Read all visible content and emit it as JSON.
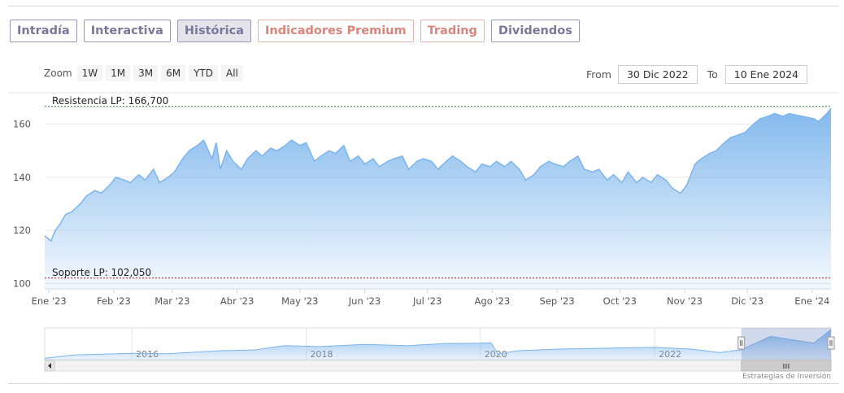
{
  "tabs": [
    {
      "label": "Intradía",
      "active": false,
      "premium": false
    },
    {
      "label": "Interactiva",
      "active": false,
      "premium": false
    },
    {
      "label": "Histórica",
      "active": true,
      "premium": false
    },
    {
      "label": "Indicadores Premium",
      "active": false,
      "premium": true
    },
    {
      "label": "Trading",
      "active": false,
      "premium": true
    },
    {
      "label": "Dividendos",
      "active": false,
      "premium": false
    }
  ],
  "zoom": {
    "label": "Zoom",
    "buttons": [
      "1W",
      "1M",
      "3M",
      "6M",
      "YTD",
      "All"
    ]
  },
  "range": {
    "from_label": "From",
    "from_value": "30 Dic 2022",
    "to_label": "To",
    "to_value": "10 Ene 2024"
  },
  "credit": "Estrategias de Inversión",
  "colors": {
    "line": "#7cb5ec",
    "resistance": "#2e7d32",
    "support": "#b71c1c",
    "tab_border": "#9a97b5",
    "premium": "#d9847c"
  },
  "chart_data": {
    "type": "area",
    "ylim": [
      98,
      170
    ],
    "xlim": [
      "2022-12-30",
      "2024-01-10"
    ],
    "y_ticks": [
      100,
      120,
      140,
      160
    ],
    "x_ticks": [
      {
        "date": "2023-01-01",
        "label": "Ene '23"
      },
      {
        "date": "2023-02-01",
        "label": "Feb '23"
      },
      {
        "date": "2023-03-01",
        "label": "Mar '23"
      },
      {
        "date": "2023-04-01",
        "label": "Abr '23"
      },
      {
        "date": "2023-05-01",
        "label": "May '23"
      },
      {
        "date": "2023-06-01",
        "label": "Jun '23"
      },
      {
        "date": "2023-07-01",
        "label": "Jul '23"
      },
      {
        "date": "2023-08-01",
        "label": "Ago '23"
      },
      {
        "date": "2023-09-01",
        "label": "Sep '23"
      },
      {
        "date": "2023-10-01",
        "label": "Oct '23"
      },
      {
        "date": "2023-11-01",
        "label": "Nov '23"
      },
      {
        "date": "2023-12-01",
        "label": "Dic '23"
      },
      {
        "date": "2024-01-01",
        "label": "Ene '24"
      }
    ],
    "series": [
      {
        "values": [
          [
            "2022-12-30",
            118
          ],
          [
            "2023-01-02",
            116
          ],
          [
            "2023-01-04",
            120
          ],
          [
            "2023-01-06",
            122
          ],
          [
            "2023-01-09",
            126
          ],
          [
            "2023-01-12",
            127
          ],
          [
            "2023-01-16",
            130
          ],
          [
            "2023-01-19",
            133
          ],
          [
            "2023-01-23",
            135
          ],
          [
            "2023-01-26",
            134
          ],
          [
            "2023-01-30",
            137
          ],
          [
            "2023-02-02",
            140
          ],
          [
            "2023-02-06",
            139
          ],
          [
            "2023-02-09",
            138
          ],
          [
            "2023-02-13",
            141
          ],
          [
            "2023-02-16",
            139
          ],
          [
            "2023-02-20",
            143
          ],
          [
            "2023-02-23",
            138
          ],
          [
            "2023-02-27",
            140
          ],
          [
            "2023-03-02",
            142
          ],
          [
            "2023-03-06",
            147
          ],
          [
            "2023-03-09",
            150
          ],
          [
            "2023-03-13",
            152
          ],
          [
            "2023-03-16",
            154
          ],
          [
            "2023-03-20",
            147
          ],
          [
            "2023-03-22",
            153
          ],
          [
            "2023-03-24",
            143
          ],
          [
            "2023-03-27",
            150
          ],
          [
            "2023-03-30",
            146
          ],
          [
            "2023-04-03",
            143
          ],
          [
            "2023-04-06",
            147
          ],
          [
            "2023-04-10",
            150
          ],
          [
            "2023-04-13",
            148
          ],
          [
            "2023-04-17",
            151
          ],
          [
            "2023-04-20",
            150
          ],
          [
            "2023-04-24",
            152
          ],
          [
            "2023-04-27",
            154
          ],
          [
            "2023-05-01",
            152
          ],
          [
            "2023-05-04",
            153
          ],
          [
            "2023-05-08",
            146
          ],
          [
            "2023-05-11",
            148
          ],
          [
            "2023-05-15",
            150
          ],
          [
            "2023-05-18",
            149
          ],
          [
            "2023-05-22",
            152
          ],
          [
            "2023-05-25",
            146
          ],
          [
            "2023-05-29",
            148
          ],
          [
            "2023-06-01",
            145
          ],
          [
            "2023-06-05",
            147
          ],
          [
            "2023-06-08",
            144
          ],
          [
            "2023-06-12",
            146
          ],
          [
            "2023-06-15",
            147
          ],
          [
            "2023-06-19",
            148
          ],
          [
            "2023-06-22",
            143
          ],
          [
            "2023-06-26",
            146
          ],
          [
            "2023-06-29",
            147
          ],
          [
            "2023-07-03",
            146
          ],
          [
            "2023-07-06",
            143
          ],
          [
            "2023-07-10",
            146
          ],
          [
            "2023-07-13",
            148
          ],
          [
            "2023-07-17",
            146
          ],
          [
            "2023-07-20",
            144
          ],
          [
            "2023-07-24",
            142
          ],
          [
            "2023-07-27",
            145
          ],
          [
            "2023-07-31",
            144
          ],
          [
            "2023-08-03",
            146
          ],
          [
            "2023-08-07",
            144
          ],
          [
            "2023-08-10",
            146
          ],
          [
            "2023-08-14",
            143
          ],
          [
            "2023-08-17",
            139
          ],
          [
            "2023-08-21",
            141
          ],
          [
            "2023-08-24",
            144
          ],
          [
            "2023-08-28",
            146
          ],
          [
            "2023-08-31",
            145
          ],
          [
            "2023-09-04",
            144
          ],
          [
            "2023-09-07",
            146
          ],
          [
            "2023-09-11",
            148
          ],
          [
            "2023-09-14",
            143
          ],
          [
            "2023-09-18",
            142
          ],
          [
            "2023-09-21",
            143
          ],
          [
            "2023-09-25",
            139
          ],
          [
            "2023-09-28",
            141
          ],
          [
            "2023-10-02",
            138
          ],
          [
            "2023-10-05",
            142
          ],
          [
            "2023-10-09",
            138
          ],
          [
            "2023-10-12",
            140
          ],
          [
            "2023-10-16",
            138
          ],
          [
            "2023-10-19",
            141
          ],
          [
            "2023-10-23",
            139
          ],
          [
            "2023-10-26",
            136
          ],
          [
            "2023-10-30",
            134
          ],
          [
            "2023-11-02",
            137
          ],
          [
            "2023-11-06",
            145
          ],
          [
            "2023-11-09",
            147
          ],
          [
            "2023-11-13",
            149
          ],
          [
            "2023-11-16",
            150
          ],
          [
            "2023-11-20",
            153
          ],
          [
            "2023-11-23",
            155
          ],
          [
            "2023-11-27",
            156
          ],
          [
            "2023-11-30",
            157
          ],
          [
            "2023-12-04",
            160
          ],
          [
            "2023-12-07",
            162
          ],
          [
            "2023-12-11",
            163
          ],
          [
            "2023-12-14",
            164
          ],
          [
            "2023-12-18",
            163
          ],
          [
            "2023-12-21",
            164
          ],
          [
            "2023-12-27",
            163
          ],
          [
            "2024-01-02",
            162
          ],
          [
            "2024-01-04",
            161
          ],
          [
            "2024-01-08",
            164
          ],
          [
            "2024-01-10",
            166
          ]
        ]
      }
    ],
    "annotations": [
      {
        "label": "Resistencia LP: 166,700",
        "value": 166.7,
        "color": "#2e7d32"
      },
      {
        "label": "Soporte LP: 102,050",
        "value": 102.05,
        "color": "#b71c1c"
      }
    ],
    "navigator": {
      "year_labels": [
        "2016",
        "2018",
        "2020",
        "2022"
      ],
      "xlim": [
        "2015-01-01",
        "2024-01-10"
      ],
      "year_ticks": [
        "2016-01-01",
        "2018-01-01",
        "2020-01-01",
        "2022-01-01"
      ],
      "values": [
        [
          "2015-01-01",
          98
        ],
        [
          "2015-05-01",
          106
        ],
        [
          "2016-01-01",
          110
        ],
        [
          "2016-06-01",
          109
        ],
        [
          "2017-01-01",
          116
        ],
        [
          "2017-06-01",
          118
        ],
        [
          "2017-10-01",
          128
        ],
        [
          "2018-03-01",
          126
        ],
        [
          "2018-09-01",
          131
        ],
        [
          "2019-03-01",
          128
        ],
        [
          "2019-08-01",
          133
        ],
        [
          "2020-01-01",
          134
        ],
        [
          "2020-02-15",
          135
        ],
        [
          "2020-03-15",
          108
        ],
        [
          "2020-06-01",
          116
        ],
        [
          "2020-12-01",
          120
        ],
        [
          "2021-06-01",
          122
        ],
        [
          "2022-01-01",
          124
        ],
        [
          "2022-06-01",
          120
        ],
        [
          "2022-10-01",
          112
        ],
        [
          "2022-12-30",
          118
        ],
        [
          "2023-05-01",
          150
        ],
        [
          "2023-10-30",
          134
        ],
        [
          "2024-01-10",
          166
        ]
      ]
    }
  }
}
